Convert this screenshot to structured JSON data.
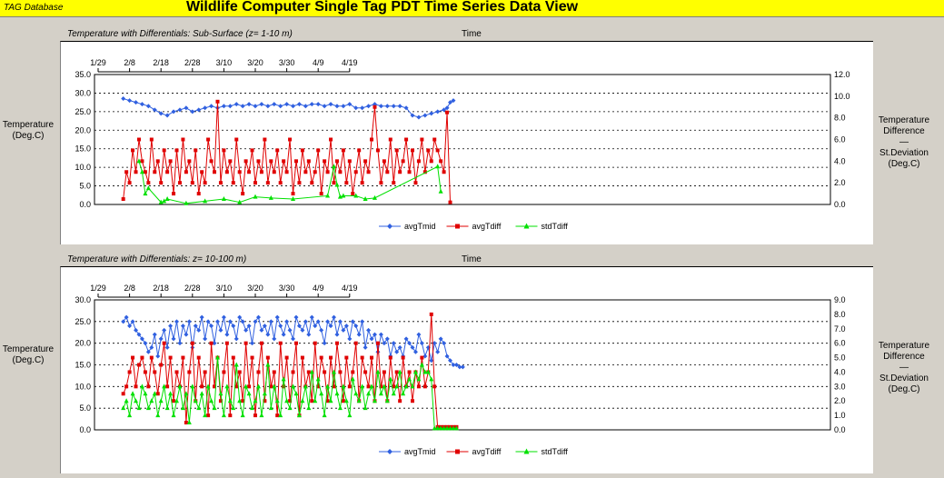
{
  "header": {
    "brand": "TAG Database",
    "title": "Wildlife Computer Single Tag PDT Time Series Data View"
  },
  "colors": {
    "avgTmid": "#3060e0",
    "avgTdiff": "#e00000",
    "stdTdiff": "#00e000",
    "header_bg": "#ffff00"
  },
  "chart_data": [
    {
      "type": "line",
      "title": "Temperature with Differentials: Sub-Surface (z= 1-10 m)",
      "xlabel": "Time",
      "ylabel": "Temperature (Deg.C)",
      "ylabel_lines": [
        "Temperature",
        "(Deg.C)"
      ],
      "y2label_lines": [
        "Temperature",
        "Difference",
        "—",
        "St.Deviation",
        "(Deg.C)"
      ],
      "x_ticks": [
        "1/29",
        "2/8",
        "2/18",
        "2/28",
        "3/10",
        "3/20",
        "3/30",
        "4/9",
        "4/19"
      ],
      "ylim": [
        0,
        35
      ],
      "y_ticks": [
        "0.0",
        "5.0",
        "10.0",
        "15.0",
        "20.0",
        "25.0",
        "30.0",
        "35.0"
      ],
      "y2lim": [
        0,
        12
      ],
      "y2_ticks": [
        "0.0",
        "2.0",
        "4.0",
        "6.0",
        "8.0",
        "10.0",
        "12.0"
      ],
      "grid": true,
      "legend_position": "bottom",
      "x_is_day_from_jan29": true,
      "series": [
        {
          "name": "avgTmid",
          "axis": "left",
          "color": "#3060e0",
          "marker": "diamond",
          "x": [
            8,
            10,
            12,
            14,
            16,
            18,
            20,
            22,
            24,
            26,
            28,
            30,
            32,
            34,
            36,
            38,
            40,
            42,
            44,
            46,
            48,
            50,
            52,
            54,
            56,
            58,
            60,
            62,
            64,
            66,
            68,
            70,
            72,
            74,
            76,
            78,
            80,
            82,
            84,
            86,
            88,
            90,
            92,
            94,
            96,
            98,
            100,
            102,
            104,
            106,
            108,
            110,
            111,
            112,
            113
          ],
          "y": [
            28.5,
            28,
            27.5,
            27,
            26.5,
            25.5,
            24.5,
            24,
            25,
            25.5,
            26,
            25,
            25.5,
            26,
            26.5,
            26,
            26.5,
            26.5,
            27,
            26.5,
            27,
            26.5,
            27,
            26.5,
            27,
            26.5,
            27,
            26.5,
            27,
            26.5,
            27,
            27,
            26.5,
            27,
            26.5,
            26.5,
            27,
            26,
            26,
            26.5,
            27,
            26.5,
            26.5,
            26.5,
            26.5,
            26,
            24,
            23.5,
            24,
            24.5,
            25,
            25.5,
            26,
            27.5,
            28
          ]
        },
        {
          "name": "avgTdiff",
          "axis": "right",
          "color": "#e00000",
          "marker": "square",
          "x": [
            8,
            9,
            10,
            11,
            12,
            13,
            14,
            15,
            16,
            17,
            18,
            19,
            20,
            21,
            22,
            23,
            24,
            25,
            26,
            27,
            28,
            29,
            30,
            31,
            32,
            33,
            34,
            35,
            36,
            37,
            38,
            39,
            40,
            41,
            42,
            43,
            44,
            45,
            46,
            47,
            48,
            49,
            50,
            51,
            52,
            53,
            54,
            55,
            56,
            57,
            58,
            59,
            60,
            61,
            62,
            63,
            64,
            65,
            66,
            67,
            68,
            69,
            70,
            71,
            72,
            73,
            74,
            75,
            76,
            77,
            78,
            79,
            80,
            81,
            82,
            83,
            84,
            85,
            86,
            87,
            88,
            89,
            90,
            91,
            92,
            93,
            94,
            95,
            96,
            97,
            98,
            99,
            100,
            101,
            102,
            103,
            104,
            105,
            106,
            107,
            108,
            109,
            110,
            111,
            112
          ],
          "y": [
            0.5,
            3,
            2,
            5,
            3,
            6,
            4,
            3,
            2,
            6,
            3,
            4,
            2,
            5,
            3,
            4,
            1,
            5,
            2,
            6,
            3,
            4,
            2,
            5,
            1,
            3,
            2,
            6,
            4,
            3,
            9.5,
            2,
            5,
            3,
            4,
            2,
            6,
            3,
            1,
            4,
            3,
            5,
            2,
            4,
            3,
            6,
            2,
            4,
            3,
            5,
            2,
            4,
            3,
            6,
            1,
            4,
            2,
            5,
            3,
            4,
            2,
            3,
            5,
            1,
            4,
            3,
            6,
            2,
            4,
            3,
            5,
            2,
            4,
            1,
            3,
            5,
            2,
            4,
            3,
            6,
            9,
            5,
            2,
            4,
            3,
            6,
            2,
            5,
            3,
            4,
            6,
            3,
            5,
            2,
            4,
            6,
            3,
            5,
            4,
            6,
            5,
            4,
            3,
            8.5,
            0.2
          ]
        },
        {
          "name": "stdTdiff",
          "axis": "right",
          "color": "#00e000",
          "marker": "triangle",
          "x": [
            13,
            14,
            15,
            16,
            20,
            21,
            22,
            28,
            34,
            40,
            45,
            50,
            55,
            62,
            73,
            75,
            76,
            77,
            78,
            82,
            85,
            88,
            108,
            109
          ],
          "y": [
            4,
            3,
            1,
            1.5,
            0.2,
            0.3,
            0.5,
            0.1,
            0.3,
            0.5,
            0.2,
            0.7,
            0.6,
            0.5,
            0.8,
            3.5,
            1.8,
            0.7,
            0.8,
            0.8,
            0.5,
            0.6,
            3.5,
            1.2
          ]
        }
      ]
    },
    {
      "type": "line",
      "title": "Temperature with Differentials: z= 10-100 m)",
      "xlabel": "Time",
      "ylabel": "Temperature (Deg.C)",
      "ylabel_lines": [
        "Temperature",
        "(Deg.C)"
      ],
      "y2label_lines": [
        "Temperature",
        "Difference",
        "—",
        "St.Deviation",
        "(Deg.C)"
      ],
      "x_ticks": [
        "1/29",
        "2/8",
        "2/18",
        "2/28",
        "3/10",
        "3/20",
        "3/30",
        "4/9",
        "4/19"
      ],
      "ylim": [
        0,
        30
      ],
      "y_ticks": [
        "0.0",
        "5.0",
        "10.0",
        "15.0",
        "20.0",
        "25.0",
        "30.0"
      ],
      "y2lim": [
        0,
        9
      ],
      "y2_ticks": [
        "0.0",
        "1.0",
        "2.0",
        "3.0",
        "4.0",
        "5.0",
        "6.0",
        "7.0",
        "8.0",
        "9.0"
      ],
      "grid": true,
      "legend_position": "bottom",
      "x_is_day_from_jan29": true,
      "series": [
        {
          "name": "avgTmid",
          "axis": "left",
          "color": "#3060e0",
          "marker": "diamond",
          "x": [
            8,
            9,
            10,
            11,
            12,
            13,
            14,
            15,
            16,
            17,
            18,
            19,
            20,
            21,
            22,
            23,
            24,
            25,
            26,
            27,
            28,
            29,
            30,
            31,
            32,
            33,
            34,
            35,
            36,
            37,
            38,
            39,
            40,
            41,
            42,
            43,
            44,
            45,
            46,
            47,
            48,
            49,
            50,
            51,
            52,
            53,
            54,
            55,
            56,
            57,
            58,
            59,
            60,
            61,
            62,
            63,
            64,
            65,
            66,
            67,
            68,
            69,
            70,
            71,
            72,
            73,
            74,
            75,
            76,
            77,
            78,
            79,
            80,
            81,
            82,
            83,
            84,
            85,
            86,
            87,
            88,
            89,
            90,
            91,
            92,
            93,
            94,
            95,
            96,
            97,
            98,
            99,
            100,
            101,
            102,
            103,
            104,
            105,
            106,
            107,
            108,
            109,
            110,
            111,
            112,
            113,
            114,
            115,
            116
          ],
          "y": [
            25,
            26,
            24,
            25,
            23,
            22,
            21,
            20,
            18,
            19,
            22,
            17,
            21,
            23,
            19,
            24,
            21,
            25,
            20,
            24,
            22,
            25,
            19,
            24,
            23,
            26,
            21,
            25,
            24,
            20,
            25,
            23,
            26,
            22,
            25,
            24,
            21,
            26,
            25,
            23,
            24,
            20,
            25,
            26,
            23,
            24,
            22,
            25,
            21,
            26,
            24,
            22,
            25,
            23,
            21,
            26,
            24,
            23,
            25,
            22,
            26,
            24,
            25,
            23,
            20,
            25,
            24,
            26,
            22,
            25,
            23,
            24,
            21,
            25,
            24,
            22,
            25,
            19,
            23,
            21,
            22,
            18,
            22,
            20,
            21,
            17,
            20,
            18,
            19,
            17,
            21,
            20,
            19,
            18,
            22,
            20,
            17,
            19,
            16,
            20,
            18,
            21,
            20,
            17,
            16,
            15,
            15,
            14.5,
            14.5
          ]
        },
        {
          "name": "avgTdiff",
          "axis": "right",
          "color": "#e00000",
          "marker": "square",
          "x": [
            8,
            9,
            10,
            11,
            12,
            13,
            14,
            15,
            16,
            17,
            18,
            19,
            20,
            21,
            22,
            23,
            24,
            25,
            26,
            27,
            28,
            29,
            30,
            31,
            32,
            33,
            34,
            35,
            36,
            37,
            38,
            39,
            40,
            41,
            42,
            43,
            44,
            45,
            46,
            47,
            48,
            49,
            50,
            51,
            52,
            53,
            54,
            55,
            56,
            57,
            58,
            59,
            60,
            61,
            62,
            63,
            64,
            65,
            66,
            67,
            68,
            69,
            70,
            71,
            72,
            73,
            74,
            75,
            76,
            77,
            78,
            79,
            80,
            81,
            82,
            83,
            84,
            85,
            86,
            87,
            88,
            89,
            90,
            91,
            92,
            93,
            94,
            95,
            96,
            97,
            98,
            99,
            100,
            101,
            102,
            103,
            104,
            105,
            106,
            107,
            108,
            109,
            110,
            111,
            112,
            113,
            114
          ],
          "y": [
            2.5,
            3,
            4,
            5,
            3,
            4.5,
            5,
            4,
            3,
            5,
            4,
            2.5,
            4.5,
            6,
            3,
            5,
            2,
            4,
            3,
            5,
            0.5,
            4,
            6,
            2,
            5,
            3,
            4,
            1,
            6,
            3,
            5,
            2,
            4,
            6,
            1,
            5,
            3,
            4,
            2,
            6,
            3,
            5,
            1,
            4,
            6,
            2,
            5,
            3,
            4,
            1,
            6,
            3,
            5,
            2,
            4,
            6,
            1,
            5,
            3,
            4,
            2,
            6,
            3,
            5,
            4,
            2,
            5,
            3,
            6,
            4,
            2,
            5,
            3,
            4,
            6,
            2,
            5,
            4,
            3,
            5,
            2,
            6,
            3,
            4,
            2,
            5,
            3,
            4,
            2,
            5,
            3,
            4,
            2,
            4,
            3,
            5,
            3,
            4,
            8,
            3,
            0.2,
            0.2,
            0.2,
            0.2,
            0.2,
            0.2,
            0.2
          ]
        },
        {
          "name": "stdTdiff",
          "axis": "right",
          "color": "#00e000",
          "marker": "triangle",
          "x": [
            8,
            9,
            10,
            11,
            12,
            13,
            14,
            15,
            16,
            17,
            18,
            19,
            20,
            21,
            22,
            23,
            24,
            25,
            26,
            27,
            28,
            29,
            30,
            31,
            32,
            33,
            34,
            35,
            36,
            37,
            38,
            39,
            40,
            41,
            42,
            43,
            44,
            45,
            46,
            47,
            48,
            49,
            50,
            51,
            52,
            53,
            54,
            55,
            56,
            57,
            58,
            59,
            60,
            61,
            62,
            63,
            64,
            65,
            66,
            67,
            68,
            69,
            70,
            71,
            72,
            73,
            74,
            75,
            76,
            77,
            78,
            79,
            80,
            81,
            82,
            83,
            84,
            85,
            86,
            87,
            88,
            89,
            90,
            91,
            92,
            93,
            94,
            95,
            96,
            97,
            98,
            99,
            100,
            101,
            102,
            103,
            104,
            105,
            106,
            107,
            108,
            109,
            110,
            111,
            112,
            113,
            114
          ],
          "y": [
            1.5,
            2,
            1,
            2.5,
            2,
            1.5,
            3,
            2.5,
            1.5,
            2,
            2.5,
            1,
            2,
            3,
            1.5,
            2.5,
            1,
            2,
            3,
            1.5,
            2.5,
            0.5,
            3,
            2,
            1.5,
            2.5,
            1,
            3,
            2,
            1.5,
            5,
            2.5,
            1,
            3,
            2,
            1.5,
            4.5,
            2,
            1,
            3,
            2.5,
            1.5,
            2,
            3,
            1,
            2.5,
            4.5,
            1.5,
            3,
            2,
            1,
            3.5,
            2,
            1.5,
            3,
            2.5,
            1,
            2,
            3,
            1.5,
            4,
            2,
            3.5,
            2.5,
            1,
            3,
            2,
            4,
            2.5,
            1.5,
            3,
            2,
            1,
            3.5,
            2.5,
            2,
            3,
            1.5,
            2.5,
            3,
            2,
            4,
            2.5,
            3,
            2,
            3.5,
            2.5,
            3,
            4,
            2.5,
            3,
            3.5,
            3,
            4,
            3.5,
            4.5,
            4,
            4,
            3.5,
            0.1,
            0.1,
            0.1,
            0.1,
            0.1,
            0.1,
            0.1,
            0.1
          ]
        }
      ]
    }
  ]
}
